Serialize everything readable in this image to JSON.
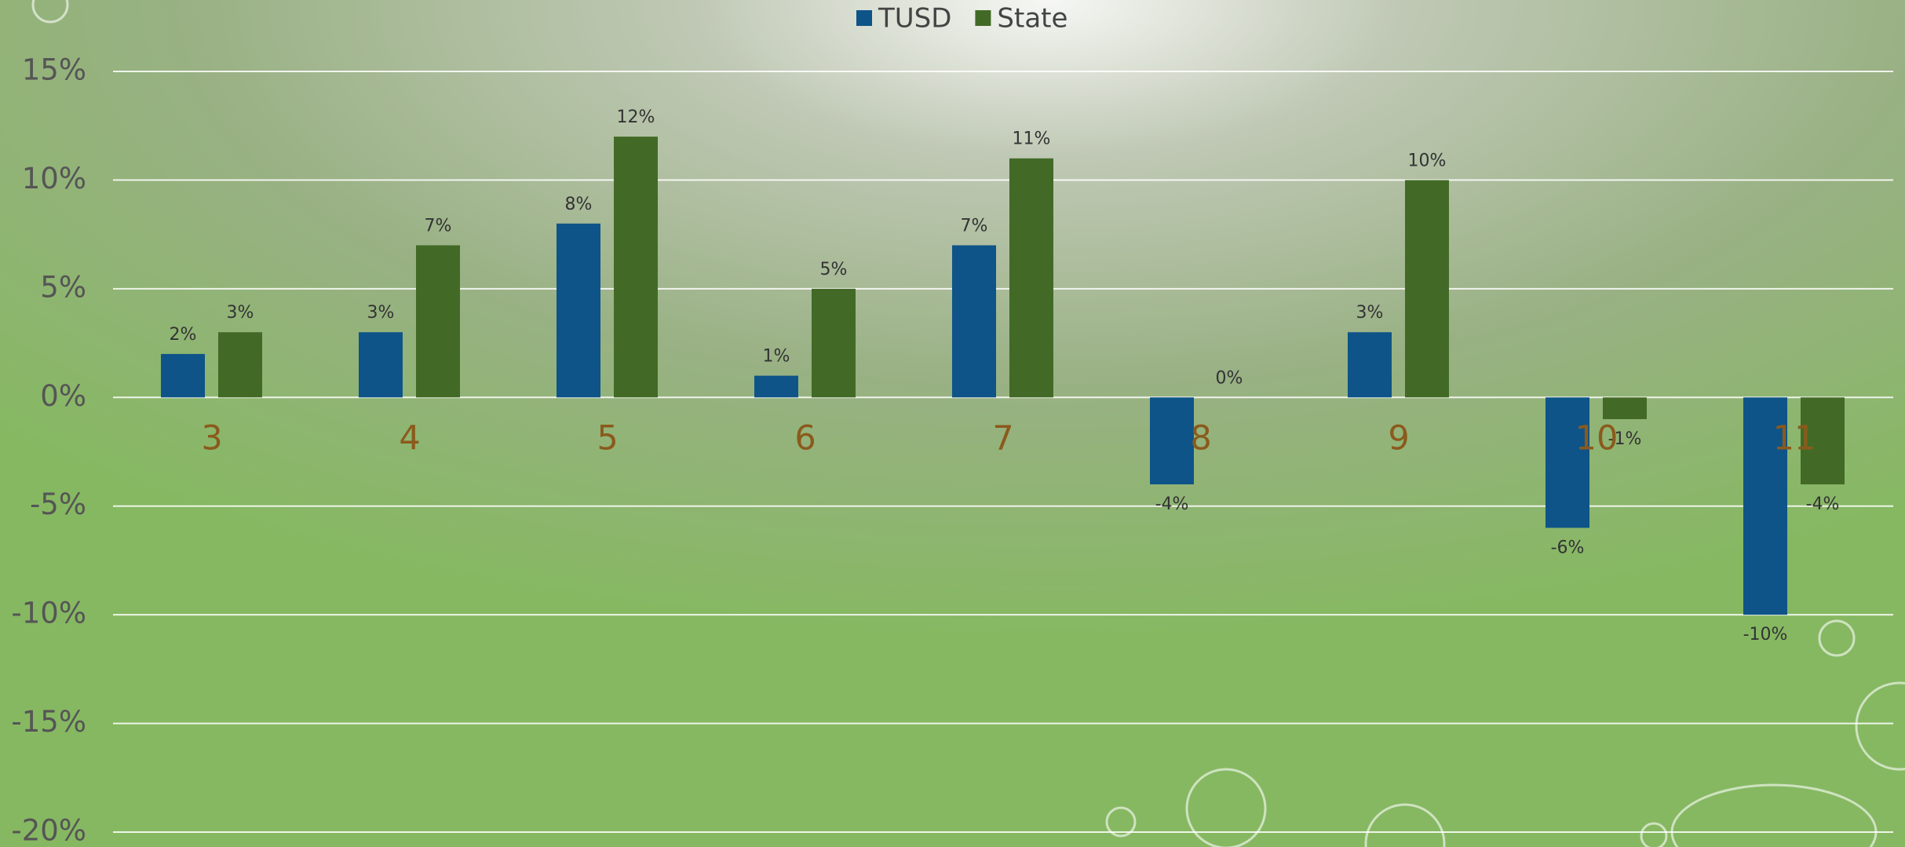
{
  "chart_data": {
    "type": "bar",
    "categories": [
      "3",
      "4",
      "5",
      "6",
      "7",
      "8",
      "9",
      "10",
      "11"
    ],
    "series": [
      {
        "name": "TUSD",
        "color": "#0e5488",
        "values": [
          2,
          3,
          8,
          1,
          7,
          -4,
          3,
          -6,
          -10
        ],
        "value_labels": [
          "2%",
          "3%",
          "8%",
          "1%",
          "7%",
          "-4%",
          "3%",
          "-6%",
          "-10%"
        ]
      },
      {
        "name": "State",
        "color": "#426a26",
        "values": [
          3,
          7,
          12,
          5,
          11,
          0,
          10,
          -1,
          -4
        ],
        "value_labels": [
          "3%",
          "7%",
          "12%",
          "5%",
          "11%",
          "0%",
          "10%",
          "-1%",
          "-4%"
        ]
      }
    ],
    "ylim": [
      -20,
      15
    ],
    "yticks": [
      {
        "value": -20,
        "label": "-20%"
      },
      {
        "value": -15,
        "label": "-15%"
      },
      {
        "value": -10,
        "label": "-10%"
      },
      {
        "value": -5,
        "label": "-5%"
      },
      {
        "value": 0,
        "label": "0%"
      },
      {
        "value": 5,
        "label": "5%"
      },
      {
        "value": 10,
        "label": "10%"
      },
      {
        "value": 15,
        "label": "15%"
      }
    ],
    "grid": true,
    "legend": "top"
  }
}
